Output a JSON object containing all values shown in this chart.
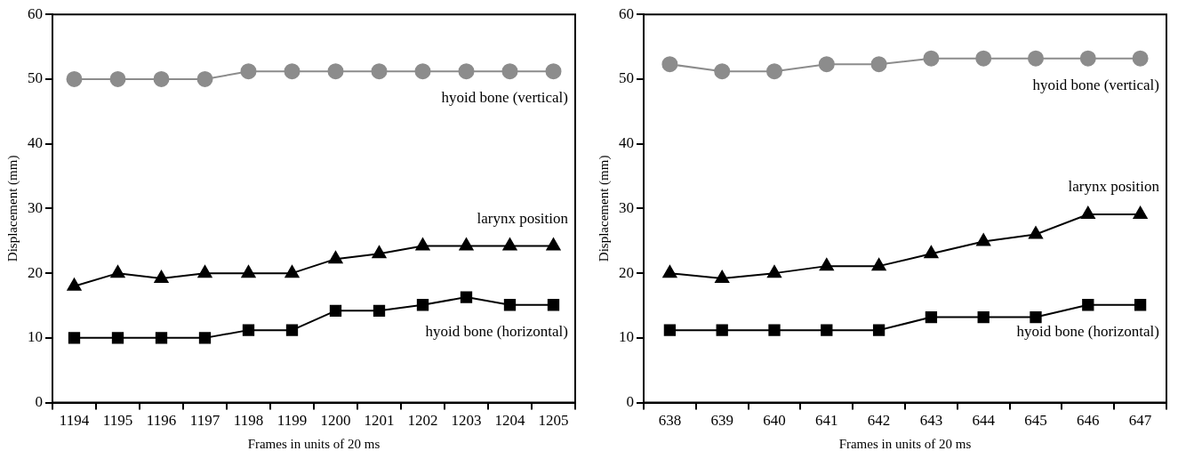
{
  "chart_data": [
    {
      "type": "line",
      "xlabel": "Frames in units of 20 ms",
      "ylabel": "Displacement (mm)",
      "categories": [
        "1194",
        "1195",
        "1196",
        "1197",
        "1198",
        "1199",
        "1200",
        "1201",
        "1202",
        "1203",
        "1204",
        "1205"
      ],
      "ylim": [
        0,
        60
      ],
      "yticks": [
        0,
        10,
        20,
        30,
        40,
        50,
        60
      ],
      "grid": false,
      "series": [
        {
          "name": "hyoid bone (vertical)",
          "color": "#8c8c8c",
          "marker": "circle",
          "values": [
            50,
            50,
            50,
            50,
            51.2,
            51.2,
            51.2,
            51.2,
            51.2,
            51.2,
            51.2,
            51.2
          ]
        },
        {
          "name": "larynx position",
          "color": "#000000",
          "marker": "triangle",
          "values": [
            18,
            20,
            19.2,
            20,
            20,
            20,
            22.2,
            23,
            24.2,
            24.2,
            24.2,
            24.2
          ]
        },
        {
          "name": "hyoid bone (horizontal)",
          "color": "#000000",
          "marker": "square",
          "values": [
            10,
            10,
            10,
            10,
            11.2,
            11.2,
            14.2,
            14.2,
            15.1,
            16.3,
            15.1,
            15.1
          ]
        }
      ]
    },
    {
      "type": "line",
      "xlabel": "Frames in units of 20 ms",
      "ylabel": "Displacement (mm)",
      "categories": [
        "638",
        "639",
        "640",
        "641",
        "642",
        "643",
        "644",
        "645",
        "646",
        "647"
      ],
      "ylim": [
        0,
        60
      ],
      "yticks": [
        0,
        10,
        20,
        30,
        40,
        50,
        60
      ],
      "grid": false,
      "series": [
        {
          "name": "hyoid bone (vertical)",
          "color": "#8c8c8c",
          "marker": "circle",
          "values": [
            52.3,
            51.2,
            51.2,
            52.3,
            52.3,
            53.2,
            53.2,
            53.2,
            53.2,
            53.2
          ]
        },
        {
          "name": "larynx position",
          "color": "#000000",
          "marker": "triangle",
          "values": [
            20,
            19.2,
            20,
            21.1,
            21.1,
            23,
            24.9,
            26,
            29.1,
            29.1
          ]
        },
        {
          "name": "hyoid bone (horizontal)",
          "color": "#000000",
          "marker": "square",
          "values": [
            11.2,
            11.2,
            11.2,
            11.2,
            11.2,
            13.2,
            13.2,
            13.2,
            15.1,
            15.1
          ]
        }
      ]
    }
  ]
}
